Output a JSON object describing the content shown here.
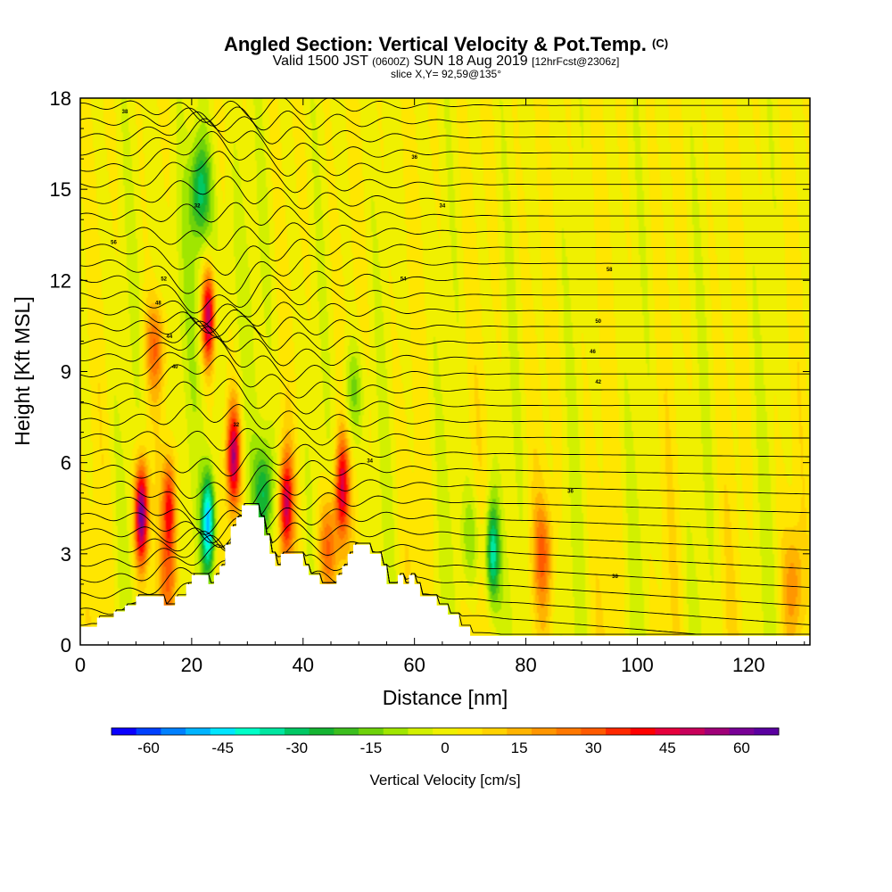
{
  "header": {
    "title_main": "Angled Section: Vertical Velocity & Pot.Temp.",
    "title_mark": "(C)",
    "subtitle_a": "Valid 1500 JST",
    "subtitle_b": "(0600Z)",
    "subtitle_c": "SUN 18 Aug 2019",
    "subtitle_d": "[12hrFcst@2306z]",
    "slice": "slice X,Y= 92,59@135°"
  },
  "chart_data": {
    "type": "heatmap",
    "xlabel": "Distance [nm]",
    "ylabel": "Height [Kft MSL]",
    "xlim": [
      0,
      131
    ],
    "ylim": [
      0,
      18
    ],
    "x_ticks": [
      0,
      20,
      40,
      60,
      80,
      100,
      120
    ],
    "y_ticks": [
      0,
      3,
      6,
      9,
      12,
      15,
      18
    ],
    "grid": false,
    "colorbar": {
      "label": "Vertical Velocity [cm/s]",
      "tick_values": [
        -60,
        -45,
        -30,
        -15,
        0,
        15,
        30,
        45,
        60
      ],
      "range": [
        -65,
        70
      ],
      "step": 5,
      "colors": [
        "#0a00ff",
        "#0040ff",
        "#0080ff",
        "#00b4ff",
        "#00e6ff",
        "#00ffc8",
        "#00e6a0",
        "#00c864",
        "#14b432",
        "#3cbe1e",
        "#6ed20a",
        "#a0e600",
        "#d2f000",
        "#f0f000",
        "#ffe600",
        "#ffd200",
        "#ffb400",
        "#ff9600",
        "#ff7800",
        "#ff5a00",
        "#ff2800",
        "#ff0000",
        "#e6003c",
        "#c8005a",
        "#a00078",
        "#780096",
        "#5a00a0"
      ]
    },
    "updrafts": [
      {
        "x": 11,
        "z": 4.3,
        "w": 62
      },
      {
        "x": 16,
        "z": 4.5,
        "w": 38
      },
      {
        "x": 13.5,
        "z": 9.8,
        "w": 25
      },
      {
        "x": 23,
        "z": 10.8,
        "w": 55
      },
      {
        "x": 27.5,
        "z": 6.2,
        "w": 50
      },
      {
        "x": 37,
        "z": 4.6,
        "w": 45
      },
      {
        "x": 47,
        "z": 5.2,
        "w": 42
      },
      {
        "x": 44.5,
        "z": 3.2,
        "w": 28
      },
      {
        "x": 83,
        "z": 3.0,
        "w": 22
      },
      {
        "x": 16,
        "z": 1.8,
        "w": 18
      },
      {
        "x": 128,
        "z": 2.0,
        "w": 16
      }
    ],
    "downdrafts": [
      {
        "x": 23,
        "z": 4.0,
        "w": -52
      },
      {
        "x": 21.5,
        "z": 15.0,
        "w": -28
      },
      {
        "x": 33,
        "z": 5.0,
        "w": -28
      },
      {
        "x": 74,
        "z": 3.0,
        "w": -38
      },
      {
        "x": 49,
        "z": 8.3,
        "w": -16
      },
      {
        "x": 70,
        "z": 3.5,
        "w": -14
      }
    ],
    "potential_temperature": {
      "units": "C",
      "labels_shown": [
        32,
        34,
        36,
        38,
        40,
        42,
        44,
        46,
        48,
        50,
        52,
        54,
        56,
        58
      ]
    }
  }
}
